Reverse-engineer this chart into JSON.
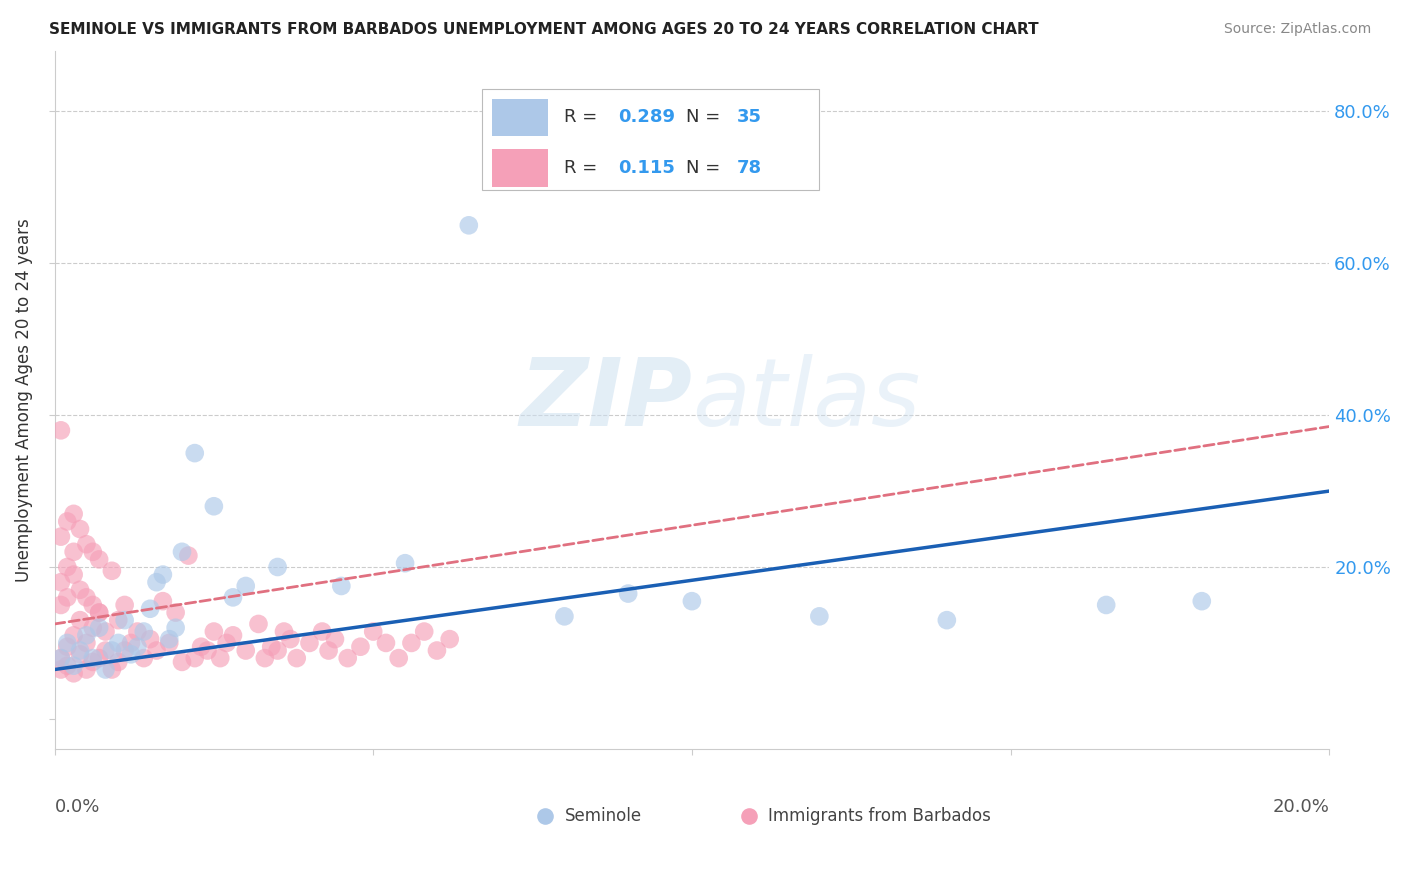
{
  "title": "SEMINOLE VS IMMIGRANTS FROM BARBADOS UNEMPLOYMENT AMONG AGES 20 TO 24 YEARS CORRELATION CHART",
  "source": "Source: ZipAtlas.com",
  "ylabel": "Unemployment Among Ages 20 to 24 years",
  "xmin": 0.0,
  "xmax": 0.2,
  "ymin": -0.04,
  "ymax": 0.88,
  "seminole_color": "#adc8e8",
  "barbados_color": "#f5a0b8",
  "seminole_line_color": "#1a5fb4",
  "barbados_line_color": "#e07080",
  "legend_R_seminole": "0.289",
  "legend_N_seminole": "35",
  "legend_R_barbados": "0.115",
  "legend_N_barbados": "78",
  "sem_line_y0": 0.065,
  "sem_line_y1": 0.3,
  "bar_line_y0": 0.125,
  "bar_line_y1": 0.385,
  "seminole_x": [
    0.001,
    0.002,
    0.003,
    0.004,
    0.005,
    0.006,
    0.007,
    0.008,
    0.009,
    0.01,
    0.011,
    0.012,
    0.013,
    0.014,
    0.015,
    0.016,
    0.017,
    0.018,
    0.019,
    0.02,
    0.022,
    0.025,
    0.028,
    0.03,
    0.035,
    0.045,
    0.055,
    0.065,
    0.08,
    0.09,
    0.1,
    0.12,
    0.14,
    0.165,
    0.18
  ],
  "seminole_y": [
    0.08,
    0.1,
    0.07,
    0.09,
    0.11,
    0.08,
    0.12,
    0.065,
    0.09,
    0.1,
    0.13,
    0.085,
    0.095,
    0.115,
    0.145,
    0.18,
    0.19,
    0.105,
    0.12,
    0.22,
    0.35,
    0.28,
    0.16,
    0.175,
    0.2,
    0.175,
    0.205,
    0.65,
    0.135,
    0.165,
    0.155,
    0.135,
    0.13,
    0.15,
    0.155
  ],
  "barbados_x": [
    0.001,
    0.001,
    0.002,
    0.002,
    0.003,
    0.003,
    0.004,
    0.004,
    0.005,
    0.005,
    0.006,
    0.006,
    0.007,
    0.007,
    0.008,
    0.008,
    0.009,
    0.009,
    0.01,
    0.01,
    0.011,
    0.011,
    0.012,
    0.013,
    0.014,
    0.015,
    0.016,
    0.017,
    0.018,
    0.019,
    0.02,
    0.021,
    0.022,
    0.023,
    0.024,
    0.025,
    0.026,
    0.027,
    0.028,
    0.03,
    0.032,
    0.033,
    0.034,
    0.035,
    0.036,
    0.037,
    0.038,
    0.04,
    0.042,
    0.043,
    0.044,
    0.046,
    0.048,
    0.05,
    0.052,
    0.054,
    0.056,
    0.058,
    0.06,
    0.062,
    0.001,
    0.001,
    0.002,
    0.001,
    0.002,
    0.003,
    0.001,
    0.002,
    0.003,
    0.004,
    0.005,
    0.006,
    0.007,
    0.003,
    0.004,
    0.005,
    0.006,
    0.007
  ],
  "barbados_y": [
    0.065,
    0.08,
    0.07,
    0.095,
    0.06,
    0.11,
    0.085,
    0.13,
    0.065,
    0.1,
    0.075,
    0.12,
    0.08,
    0.14,
    0.09,
    0.115,
    0.065,
    0.195,
    0.075,
    0.13,
    0.09,
    0.15,
    0.1,
    0.115,
    0.08,
    0.105,
    0.09,
    0.155,
    0.1,
    0.14,
    0.075,
    0.215,
    0.08,
    0.095,
    0.09,
    0.115,
    0.08,
    0.1,
    0.11,
    0.09,
    0.125,
    0.08,
    0.095,
    0.09,
    0.115,
    0.105,
    0.08,
    0.1,
    0.115,
    0.09,
    0.105,
    0.08,
    0.095,
    0.115,
    0.1,
    0.08,
    0.1,
    0.115,
    0.09,
    0.105,
    0.38,
    0.15,
    0.16,
    0.18,
    0.2,
    0.22,
    0.24,
    0.26,
    0.27,
    0.25,
    0.23,
    0.22,
    0.21,
    0.19,
    0.17,
    0.16,
    0.15,
    0.14
  ]
}
